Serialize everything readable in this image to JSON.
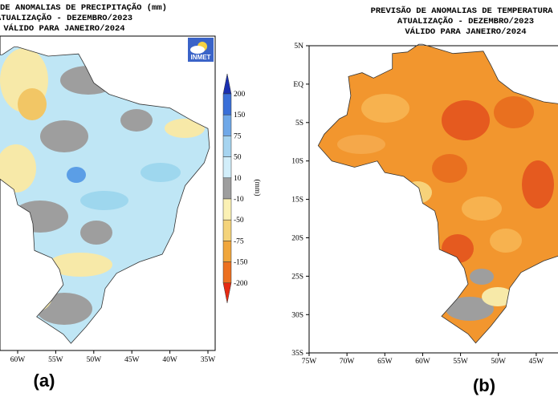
{
  "panels": [
    {
      "title_lines": [
        "DE ANOMALIAS DE PRECIPITAÇÃO (mm)",
        "ATUALIZAÇÃO - DEZEMBRO/2023",
        "VÁLIDO PARA JANEIRO/2024"
      ],
      "logo": "INMET",
      "colorbar": {
        "unit": "(mm)",
        "ticks": [
          "200",
          "150",
          "75",
          "50",
          "10",
          "-10",
          "-50",
          "-75",
          "-150",
          "-200"
        ]
      },
      "x_axis": [
        "60W",
        "55W",
        "50W",
        "45W",
        "40W",
        "35W"
      ],
      "label": "(a)"
    },
    {
      "title_lines": [
        "PREVISÃO DE ANOMALIAS DE TEMPERATURA",
        "ATUALIZAÇÃO - DEZEMBRO/2023",
        "VÁLIDO PARA JANEIRO/2024"
      ],
      "y_axis": [
        "5N",
        "EQ",
        "5S",
        "10S",
        "15S",
        "20S",
        "25S",
        "30S",
        "35S"
      ],
      "x_axis": [
        "75W",
        "70W",
        "65W",
        "60W",
        "55W",
        "50W",
        "45W"
      ],
      "label": "(b)"
    }
  ]
}
